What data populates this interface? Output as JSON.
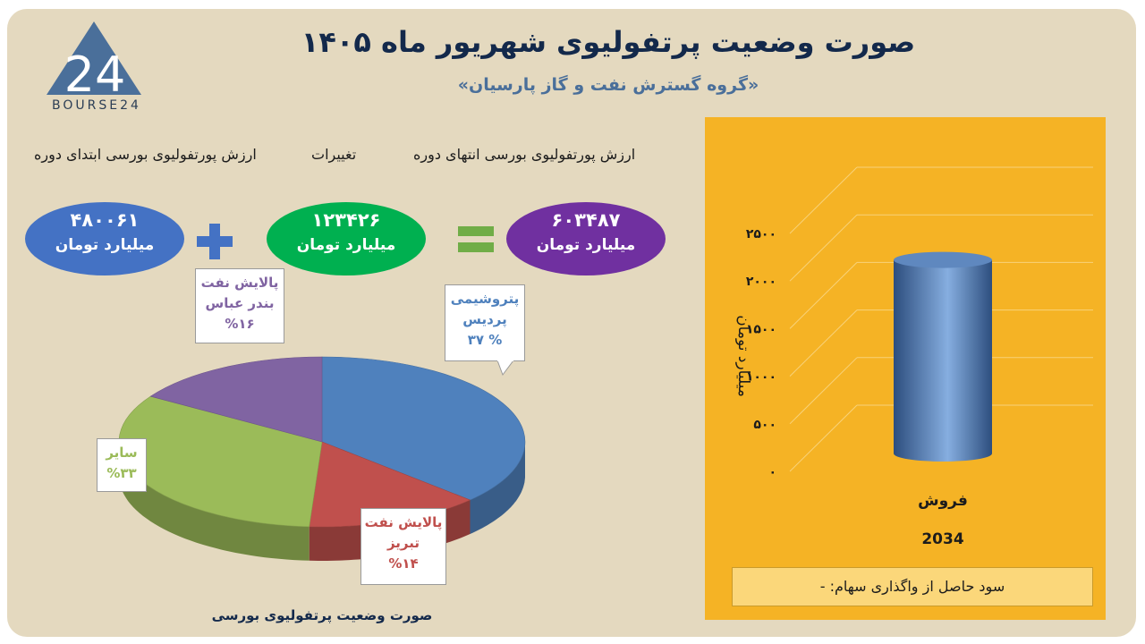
{
  "header": {
    "title": "صورت وضعیت پرتفولیوی شهریور ماه ۱۴۰۵",
    "subtitle": "«گروه گسترش نفت و گاز پارسیان»"
  },
  "logo": {
    "brand_text": "BOURSE24",
    "mark_text": "24",
    "color": "#4a6f9a"
  },
  "summary": {
    "start_label": "ارزش پورتفولیوی بورسی ابتدای دوره",
    "change_label": "تغییرات",
    "end_label": "ارزش پورتفولیوی بورسی انتهای دوره",
    "start_value": "۴۸۰۰۶۱",
    "change_value": "۱۲۳۴۲۶",
    "end_value": "۶۰۳۴۸۷",
    "unit": "میلیارد تومان",
    "plus_icon": "plus-sign-icon",
    "equals_icon": "equals-sign-icon",
    "colors": {
      "start": "#4472c4",
      "change": "#00b050",
      "end": "#7030a0",
      "sign": "#4472c4",
      "equals": "#70ad47"
    }
  },
  "chart_data": [
    {
      "type": "pie",
      "title": "صورت وضعیت پرتفولیوی بورسی",
      "slices": [
        {
          "name_line1": "پتروشیمی",
          "name_line2": "پردیس",
          "value": 37,
          "label": "% ۳۷",
          "color": "#4f81bd"
        },
        {
          "name_line1": "پالایش نفت",
          "name_line2": "تبریز",
          "value": 14,
          "label": "%۱۴",
          "color": "#c0504d"
        },
        {
          "name_line1": "سایر",
          "name_line2": "",
          "value": 33,
          "label": "%۳۳",
          "color": "#9bbb59"
        },
        {
          "name_line1": "پالایش نفت",
          "name_line2": "بندر عباس",
          "value": 16,
          "label": "%۱۶",
          "color": "#8064a2"
        }
      ]
    },
    {
      "type": "bar",
      "categories": [
        "فروش"
      ],
      "values": [
        2034
      ],
      "value_label": "2034",
      "ylabel": "میلیارد تومان",
      "ylim": [
        0,
        2500
      ],
      "yticks": [
        "۰",
        "۵۰۰",
        "۱۰۰۰",
        "۱۵۰۰",
        "۲۰۰۰",
        "۲۵۰۰"
      ],
      "yvals": [
        0,
        500,
        1000,
        1500,
        2000,
        2500
      ],
      "grid": true,
      "bar_color": "#4a6fa5",
      "panel_color": "#f5b325"
    }
  ],
  "footer": {
    "sales_gain": "سود حاصل از واگذاری سهام: -"
  }
}
